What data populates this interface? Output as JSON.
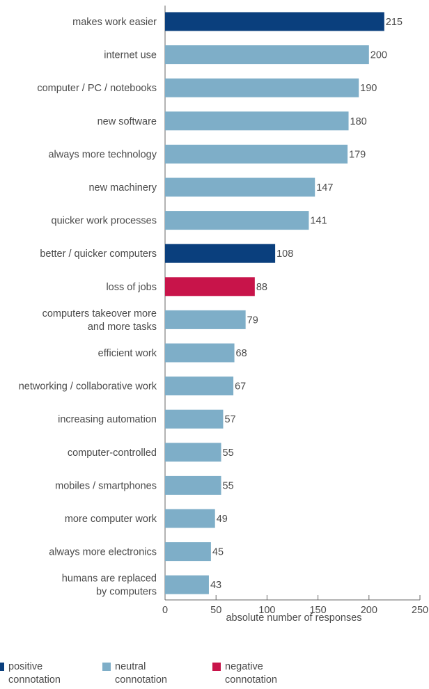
{
  "chart_data": {
    "type": "bar",
    "orientation": "horizontal",
    "categories": [
      [
        "makes work easier"
      ],
      [
        "internet use"
      ],
      [
        "computer / PC / notebooks"
      ],
      [
        "new software"
      ],
      [
        "always more technology"
      ],
      [
        "new machinery"
      ],
      [
        "quicker work processes"
      ],
      [
        "better / quicker computers"
      ],
      [
        "loss of jobs"
      ],
      [
        "computers takeover more",
        "and more tasks"
      ],
      [
        "efficient work"
      ],
      [
        "networking / collaborative work"
      ],
      [
        "increasing automation"
      ],
      [
        "computer-controlled"
      ],
      [
        "mobiles / smartphones"
      ],
      [
        "more computer work"
      ],
      [
        "always more electronics"
      ],
      [
        "humans are replaced",
        "by computers"
      ]
    ],
    "values": [
      215,
      200,
      190,
      180,
      179,
      147,
      141,
      108,
      88,
      79,
      68,
      67,
      57,
      55,
      55,
      49,
      45,
      43
    ],
    "connotation": [
      "positive",
      "neutral",
      "neutral",
      "neutral",
      "neutral",
      "neutral",
      "neutral",
      "positive",
      "negative",
      "neutral",
      "neutral",
      "neutral",
      "neutral",
      "neutral",
      "neutral",
      "neutral",
      "neutral",
      "neutral"
    ],
    "colors": {
      "positive": "#0a3f7d",
      "neutral": "#7eaec8",
      "negative": "#c8144a"
    },
    "xlabel": "absolute number of responses",
    "xlim": [
      0,
      250
    ],
    "xticks": [
      0,
      50,
      100,
      150,
      200,
      250
    ],
    "legend": [
      {
        "key": "positive",
        "label_line1": "positive",
        "label_line2": "connotation"
      },
      {
        "key": "neutral",
        "label_line1": "neutral",
        "label_line2": "connotation"
      },
      {
        "key": "negative",
        "label_line1": "negative",
        "label_line2": "connotation"
      }
    ]
  }
}
